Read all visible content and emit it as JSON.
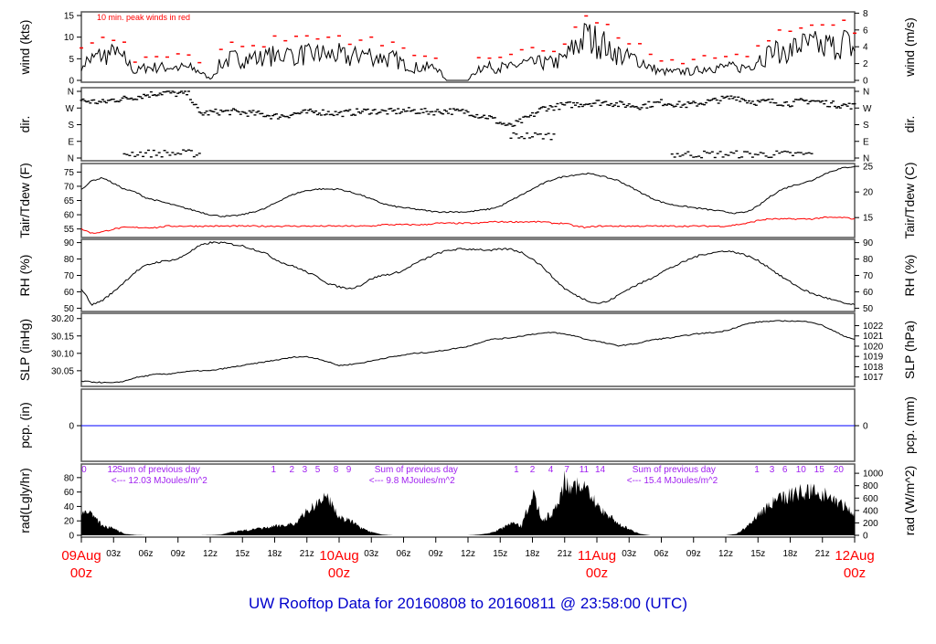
{
  "chart_data": {
    "type": "line",
    "title": "UW Rooftop Data for 20160808  to  20160811 @ 23:58:00  (UTC)",
    "x_unit": "hours since 09Aug 00z",
    "xlim": [
      0,
      72
    ],
    "x_ticks": [
      {
        "h": 0,
        "label": ""
      },
      {
        "h": 3,
        "label": "03z"
      },
      {
        "h": 6,
        "label": "06z"
      },
      {
        "h": 9,
        "label": "09z"
      },
      {
        "h": 12,
        "label": "12z"
      },
      {
        "h": 15,
        "label": "15z"
      },
      {
        "h": 18,
        "label": "18z"
      },
      {
        "h": 21,
        "label": "21z"
      },
      {
        "h": 24,
        "label": ""
      },
      {
        "h": 27,
        "label": "03z"
      },
      {
        "h": 30,
        "label": "06z"
      },
      {
        "h": 33,
        "label": "09z"
      },
      {
        "h": 36,
        "label": "12z"
      },
      {
        "h": 39,
        "label": "15z"
      },
      {
        "h": 42,
        "label": "18z"
      },
      {
        "h": 45,
        "label": "21z"
      },
      {
        "h": 48,
        "label": ""
      },
      {
        "h": 51,
        "label": "03z"
      },
      {
        "h": 54,
        "label": "06z"
      },
      {
        "h": 57,
        "label": "09z"
      },
      {
        "h": 60,
        "label": "12z"
      },
      {
        "h": 63,
        "label": "15z"
      },
      {
        "h": 66,
        "label": "18z"
      },
      {
        "h": 69,
        "label": "21z"
      },
      {
        "h": 72,
        "label": ""
      }
    ],
    "day_labels": [
      {
        "h": 0,
        "date": "09Aug",
        "time": "00z"
      },
      {
        "h": 24,
        "date": "10Aug",
        "time": "00z"
      },
      {
        "h": 48,
        "date": "11Aug",
        "time": "00z"
      },
      {
        "h": 72,
        "date": "12Aug",
        "time": "00z"
      }
    ],
    "panels": {
      "wind": {
        "ylabel_left": "wind (kts)",
        "ylabel_right": "wind (m/s)",
        "ylim": [
          0,
          15
        ],
        "left_ticks": [
          0,
          5,
          10,
          15
        ],
        "right_ticks": [
          0,
          2,
          4,
          6,
          8
        ],
        "annotation": "10 min. peak winds in red",
        "peak_color": "#ff0000",
        "hourly_kts": [
          4,
          5,
          6,
          6,
          5,
          2,
          3,
          3,
          3,
          3,
          3,
          2,
          0.3,
          4,
          5,
          5,
          5,
          5,
          6,
          6,
          6,
          6,
          6,
          6,
          6,
          5,
          6,
          6,
          5,
          5,
          4,
          3,
          3,
          3,
          0,
          0,
          0,
          3,
          3,
          3,
          3,
          4,
          4,
          4,
          4,
          5,
          8,
          10,
          9,
          8,
          6,
          5,
          5,
          3,
          2,
          2,
          2,
          2,
          3,
          3,
          3,
          3,
          3,
          5,
          6,
          7,
          7,
          8,
          8,
          8,
          8,
          9,
          7
        ]
      },
      "dir": {
        "ylabel_left": "dir.",
        "ylabel_right": "dir.",
        "tick_labels": [
          "N",
          "E",
          "S",
          "W",
          "N"
        ],
        "ylim": [
          0,
          360
        ],
        "hourly_deg": [
          310,
          305,
          300,
          315,
          320,
          330,
          340,
          350,
          355,
          345,
          350,
          240,
          245,
          250,
          250,
          245,
          240,
          235,
          225,
          230,
          240,
          245,
          250,
          245,
          240,
          245,
          250,
          255,
          250,
          250,
          255,
          255,
          250,
          250,
          255,
          250,
          250,
          230,
          220,
          190,
          170,
          200,
          230,
          270,
          275,
          285,
          290,
          295,
          300,
          300,
          290,
          285,
          280,
          290,
          300,
          295,
          285,
          290,
          300,
          310,
          320,
          330,
          310,
          300,
          305,
          300,
          295,
          305,
          310,
          300,
          290,
          285,
          280
        ],
        "secondary_clusters": [
          {
            "from": 4,
            "to": 11,
            "deg": 25
          },
          {
            "from": 55,
            "to": 68,
            "deg": 20
          },
          {
            "from": 40,
            "to": 44,
            "deg": 120
          }
        ]
      },
      "temp": {
        "ylabel_left": "Tair/Tdew (F)",
        "ylabel_right": "Tair/Tdew (C)",
        "ylim": [
          52,
          78
        ],
        "left_ticks": [
          55,
          60,
          65,
          70,
          75
        ],
        "right_ticks": [
          15,
          20,
          25
        ],
        "dew_color": "#ff0000",
        "tair_hourly": [
          69,
          72,
          73,
          71,
          69,
          68,
          66,
          65,
          64,
          63,
          62,
          61,
          60,
          59.5,
          59.5,
          60,
          61,
          62,
          64,
          66,
          67.5,
          68.5,
          69,
          69,
          69,
          68,
          67,
          65.5,
          64,
          63,
          62.5,
          62,
          61.5,
          61,
          61,
          61,
          61,
          61.5,
          62,
          63,
          65,
          67,
          69,
          71,
          72.5,
          73.5,
          74,
          74.5,
          74,
          73,
          72,
          70,
          68,
          66,
          64.5,
          63.5,
          63,
          62.5,
          62,
          61.5,
          61,
          60.5,
          61,
          63,
          66,
          68.5,
          70,
          71,
          72,
          74,
          75.5,
          76.5,
          77
        ],
        "tdew_hourly": [
          55,
          53.5,
          54,
          55,
          55.5,
          55.5,
          55.5,
          55.5,
          56,
          56,
          56,
          56,
          56,
          56,
          56,
          56,
          56,
          56,
          56,
          56,
          56,
          56,
          56,
          56,
          56,
          56,
          56,
          56,
          56.5,
          56.5,
          56.5,
          56.5,
          56.5,
          57,
          57,
          57,
          57,
          57,
          57.5,
          57.5,
          57.5,
          57.5,
          57.5,
          57.5,
          57,
          57,
          56,
          55.5,
          56,
          56,
          56,
          56,
          56,
          56,
          56,
          56,
          56,
          56,
          56,
          56,
          56,
          56.5,
          57,
          58,
          58.5,
          58.5,
          58.5,
          58.5,
          58.5,
          59,
          59,
          59,
          58.5
        ]
      },
      "rh": {
        "ylabel_left": "RH (%)",
        "ylabel_right": "RH (%)",
        "ylim": [
          48,
          92
        ],
        "left_ticks": [
          50,
          60,
          70,
          80,
          90
        ],
        "right_ticks": [
          50,
          60,
          70,
          80,
          90
        ],
        "hourly": [
          62,
          52,
          55,
          60,
          66,
          72,
          76,
          78,
          79,
          80,
          84,
          88,
          90,
          90,
          89,
          88,
          86,
          84,
          80,
          77,
          75,
          72,
          69,
          65,
          63,
          62,
          64,
          68,
          70,
          71,
          73,
          77,
          80,
          83,
          85,
          86,
          86,
          86,
          85,
          86,
          86,
          84,
          80,
          75,
          68,
          62,
          58,
          55,
          53,
          54,
          58,
          62,
          65,
          68,
          72,
          75,
          78,
          81,
          83,
          84,
          85,
          84,
          82,
          79,
          75,
          70,
          66,
          62,
          59,
          57,
          55,
          53,
          52
        ]
      },
      "slp": {
        "ylabel_left": "SLP (inHg)",
        "ylabel_right": "SLP (hPa)",
        "ylim": [
          30.005,
          30.215
        ],
        "left_ticks": [
          30.05,
          30.1,
          30.15,
          30.2
        ],
        "left_tick_labels": [
          "30.05",
          "30.10",
          "30.15",
          "30.20"
        ],
        "right_ticks": [
          1017,
          1018,
          1019,
          1020,
          1021,
          1022
        ],
        "hourly": [
          30.02,
          30.018,
          30.016,
          30.015,
          30.02,
          30.03,
          30.035,
          30.04,
          30.04,
          30.045,
          30.048,
          30.05,
          30.05,
          30.055,
          30.06,
          30.065,
          30.07,
          30.075,
          30.08,
          30.085,
          30.09,
          30.09,
          30.085,
          30.075,
          30.065,
          30.068,
          30.072,
          30.078,
          30.085,
          30.09,
          30.095,
          30.1,
          30.102,
          30.105,
          30.11,
          30.115,
          30.12,
          30.13,
          30.14,
          30.142,
          30.145,
          30.15,
          30.155,
          30.158,
          30.16,
          30.155,
          30.15,
          30.14,
          30.135,
          30.128,
          30.122,
          30.125,
          30.13,
          30.138,
          30.142,
          30.145,
          30.15,
          30.155,
          30.158,
          30.16,
          30.165,
          30.175,
          30.185,
          30.19,
          30.192,
          30.193,
          30.193,
          30.192,
          30.19,
          30.18,
          30.165,
          30.15,
          30.14
        ]
      },
      "pcp": {
        "ylabel_left": "pcp. (in)",
        "ylabel_right": "pcp. (mm)",
        "left_ticks": [
          0
        ],
        "right_ticks": [
          0
        ],
        "line_color": "#0000ff",
        "value": 0
      },
      "rad": {
        "ylabel_left": "rad(Lgly/hr)",
        "ylabel_right": "rad (W/m^2)",
        "ylim": [
          0,
          95
        ],
        "left_ticks": [
          0,
          20,
          40,
          60,
          80
        ],
        "right_ticks": [
          0,
          200,
          400,
          600,
          800,
          1000
        ],
        "hourly_lgly": [
          40,
          38,
          15,
          12,
          2,
          0.5,
          0,
          0,
          0,
          0,
          0,
          0,
          0.3,
          1,
          5,
          8,
          10,
          12,
          15,
          18,
          20,
          40,
          55,
          65,
          30,
          25,
          12,
          5,
          1,
          0,
          0,
          0,
          0,
          0,
          0,
          0,
          0,
          1,
          3,
          10,
          20,
          15,
          70,
          25,
          40,
          90,
          85,
          75,
          50,
          35,
          20,
          10,
          2,
          0,
          0,
          0,
          0,
          0,
          0,
          0,
          0,
          2,
          15,
          35,
          50,
          60,
          68,
          72,
          74,
          70,
          60,
          50,
          36
        ],
        "hour_marks": [
          {
            "h": 0.25,
            "label": "0"
          },
          {
            "h": 2.9,
            "label": "12"
          },
          {
            "h": 17.9,
            "label": "1"
          },
          {
            "h": 19.6,
            "label": "2"
          },
          {
            "h": 20.8,
            "label": "3"
          },
          {
            "h": 22,
            "label": "5"
          },
          {
            "h": 23.7,
            "label": "8"
          },
          {
            "h": 24.9,
            "label": "9"
          },
          {
            "h": 40.5,
            "label": "1"
          },
          {
            "h": 42,
            "label": "2"
          },
          {
            "h": 43.7,
            "label": "4"
          },
          {
            "h": 45.2,
            "label": "7"
          },
          {
            "h": 46.8,
            "label": "11"
          },
          {
            "h": 48.3,
            "label": "14"
          },
          {
            "h": 62.9,
            "label": "1"
          },
          {
            "h": 64.3,
            "label": "3"
          },
          {
            "h": 65.5,
            "label": "6"
          },
          {
            "h": 67,
            "label": "10"
          },
          {
            "h": 68.7,
            "label": "15"
          },
          {
            "h": 70.5,
            "label": "20"
          }
        ],
        "daily_sums": [
          {
            "h": 3.3,
            "line1": "Sum of previous day",
            "line2": "<--- 12.03 MJoules/m^2"
          },
          {
            "h": 27.3,
            "line1": "Sum of previous day",
            "line2": "<--- 9.8 MJoules/m^2"
          },
          {
            "h": 51.3,
            "line1": "Sum of previous day",
            "line2": "<--- 15.4 MJoules/m^2"
          }
        ],
        "annotation_color": "#a020f0"
      }
    }
  }
}
